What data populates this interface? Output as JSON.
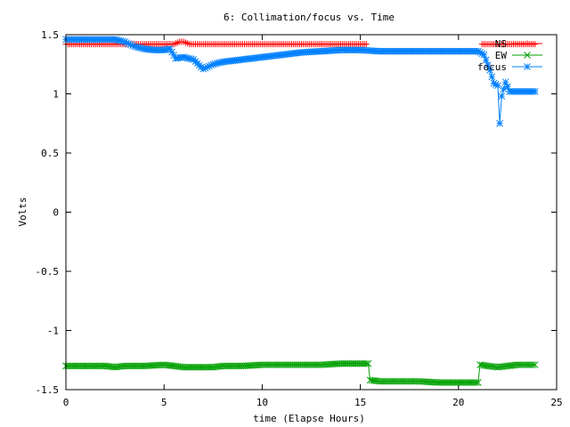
{
  "chart_data": {
    "type": "line",
    "title": "6: Collimation/focus vs. Time",
    "xlabel": "time (Elapse Hours)",
    "ylabel": "Volts",
    "xlim": [
      0,
      25
    ],
    "ylim": [
      -1.5,
      1.5
    ],
    "xticks": [
      "0",
      "5",
      "10",
      "15",
      "20",
      "25"
    ],
    "yticks": [
      "-1.5",
      "-1",
      "-0.5",
      "0",
      "0.5",
      "1",
      "1.5"
    ],
    "grid": false,
    "legend_position": "top-right",
    "series": [
      {
        "name": "NS",
        "color": "#ff0000",
        "marker": "plus",
        "x": [
          0,
          1,
          2,
          3,
          4,
          5,
          5.5,
          5.8,
          6.0,
          6.3,
          7,
          8,
          9,
          10,
          11,
          12,
          13,
          14,
          15,
          15.4,
          15.5,
          20,
          21,
          21.2,
          21.5,
          22,
          22.5,
          23,
          23.9
        ],
        "y": [
          1.42,
          1.42,
          1.42,
          1.42,
          1.42,
          1.42,
          1.42,
          1.44,
          1.44,
          1.42,
          1.42,
          1.42,
          1.42,
          1.42,
          1.42,
          1.42,
          1.42,
          1.42,
          1.42,
          1.42,
          null,
          null,
          null,
          1.42,
          1.42,
          1.42,
          1.42,
          1.42,
          1.42
        ]
      },
      {
        "name": "EW",
        "color": "#00a000",
        "marker": "x",
        "x": [
          0,
          1,
          2,
          2.5,
          3,
          4,
          5,
          5.5,
          6,
          6.5,
          7,
          7.5,
          8,
          9,
          10,
          11,
          12,
          13,
          14,
          15,
          15.4,
          15.5,
          16,
          17,
          18,
          19,
          20,
          21,
          21.1,
          21.5,
          22,
          22.5,
          23,
          23.9
        ],
        "y": [
          -1.3,
          -1.3,
          -1.3,
          -1.31,
          -1.3,
          -1.3,
          -1.29,
          -1.3,
          -1.31,
          -1.31,
          -1.31,
          -1.31,
          -1.3,
          -1.3,
          -1.29,
          -1.29,
          -1.29,
          -1.29,
          -1.28,
          -1.28,
          -1.28,
          -1.42,
          -1.43,
          -1.43,
          -1.43,
          -1.44,
          -1.44,
          -1.44,
          -1.29,
          -1.3,
          -1.31,
          -1.3,
          -1.29,
          -1.29
        ]
      },
      {
        "name": "focus",
        "color": "#0080ff",
        "marker": "star",
        "x": [
          0,
          1,
          2,
          2.5,
          3,
          3.5,
          4,
          4.5,
          5,
          5.3,
          5.6,
          6,
          6.5,
          7,
          7.5,
          8,
          9,
          10,
          11,
          12,
          13,
          14,
          15,
          16,
          17,
          18,
          19,
          20,
          21,
          21.3,
          21.6,
          21.8,
          22,
          22.1,
          22.2,
          22.4,
          22.6,
          23,
          23.9
        ],
        "y": [
          1.46,
          1.46,
          1.46,
          1.46,
          1.44,
          1.4,
          1.38,
          1.37,
          1.37,
          1.38,
          1.3,
          1.31,
          1.29,
          1.21,
          1.25,
          1.27,
          1.29,
          1.31,
          1.33,
          1.35,
          1.36,
          1.37,
          1.37,
          1.36,
          1.36,
          1.36,
          1.36,
          1.36,
          1.36,
          1.33,
          1.2,
          1.09,
          1.07,
          0.75,
          0.98,
          1.1,
          1.02,
          1.02,
          1.02
        ]
      }
    ]
  }
}
